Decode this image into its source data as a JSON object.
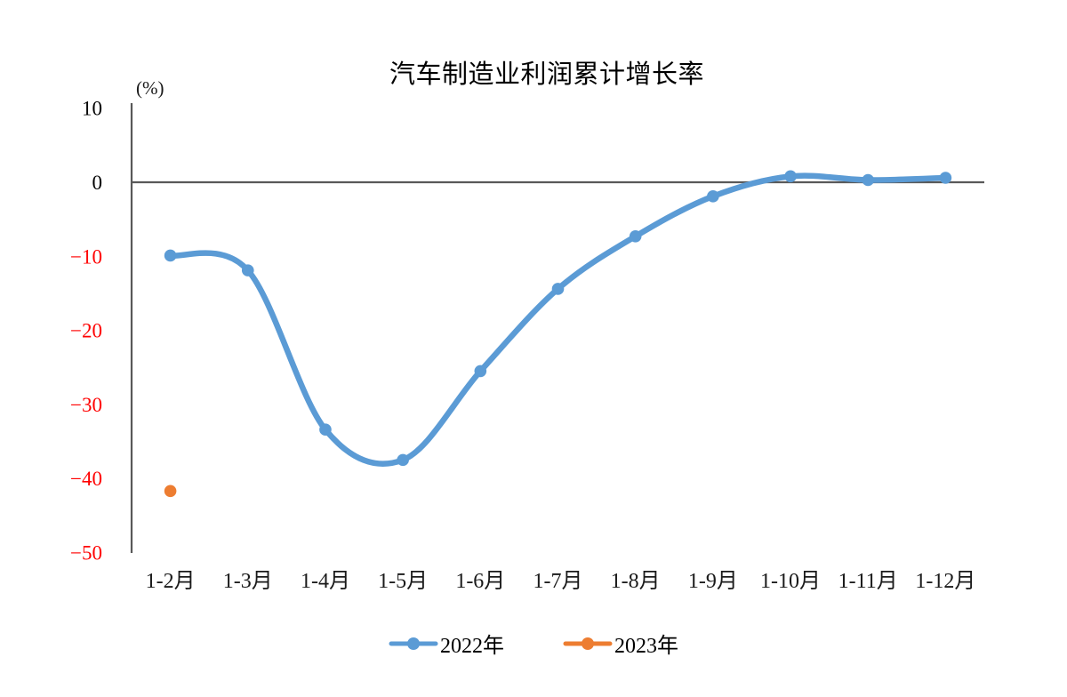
{
  "chart_data": {
    "type": "line",
    "title": "汽车制造业利润累计增长率",
    "unit_label": "(%)",
    "categories": [
      "1-2月",
      "1-3月",
      "1-4月",
      "1-5月",
      "1-6月",
      "1-7月",
      "1-8月",
      "1-9月",
      "1-10月",
      "1-11月",
      "1-12月"
    ],
    "series": [
      {
        "name": "2022年",
        "color": "#5B9BD5",
        "smooth": true,
        "show_line": true,
        "values": [
          -9.9,
          -11.9,
          -33.4,
          -37.5,
          -25.5,
          -14.4,
          -7.3,
          -1.9,
          0.8,
          0.3,
          0.6
        ]
      },
      {
        "name": "2023年",
        "color": "#ED7D31",
        "smooth": false,
        "show_line": false,
        "values": [
          -41.7,
          null,
          null,
          null,
          null,
          null,
          null,
          null,
          null,
          null,
          null
        ]
      }
    ],
    "y_axis": {
      "ticks": [
        10,
        0,
        -10,
        -20,
        -30,
        -40,
        -50
      ],
      "min": -50,
      "max": 10,
      "step": 10,
      "positive_tick_color": "#000000",
      "negative_tick_color": "#FF0000"
    },
    "x_axis": {
      "label_color": "#1a1a1a"
    },
    "axis_color": "#595959",
    "grid": false,
    "legend_position": "bottom"
  }
}
